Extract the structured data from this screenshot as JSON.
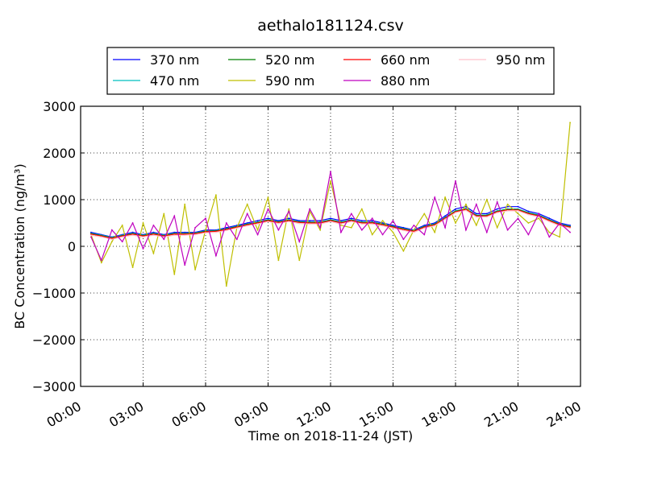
{
  "chart_data": {
    "type": "line",
    "title": "aethalo181124.csv",
    "xlabel": "Time on 2018-11-24 (JST)",
    "ylabel": "BC Concentration (ng/m³)",
    "x_ticks": [
      "00:00",
      "03:00",
      "06:00",
      "09:00",
      "12:00",
      "15:00",
      "18:00",
      "21:00",
      "24:00"
    ],
    "xlim_hours": [
      0,
      24
    ],
    "ylim": [
      -3000,
      3000
    ],
    "y_ticks": [
      3000,
      2000,
      1000,
      0,
      -1000,
      -2000,
      -3000
    ],
    "y_tick_labels": [
      "3000",
      "2000",
      "1000",
      "0",
      "−1000",
      "−2000",
      "−3000"
    ],
    "grid": true,
    "legend_position": "top, above plot",
    "x_hours": [
      0.5,
      1.0,
      1.5,
      2.0,
      2.5,
      3.0,
      3.5,
      4.0,
      4.5,
      5.0,
      5.5,
      6.0,
      6.5,
      7.0,
      7.5,
      8.0,
      8.5,
      9.0,
      9.5,
      10.0,
      10.5,
      11.0,
      11.5,
      12.0,
      12.5,
      13.0,
      13.5,
      14.0,
      14.5,
      15.0,
      15.5,
      16.0,
      16.5,
      17.0,
      17.5,
      18.0,
      18.5,
      19.0,
      19.5,
      20.0,
      20.5,
      21.0,
      21.5,
      22.0,
      22.5,
      23.0,
      23.5
    ],
    "series": [
      {
        "name": "370 nm",
        "color": "#0000ff",
        "values": [
          300,
          250,
          200,
          250,
          300,
          250,
          300,
          250,
          300,
          300,
          300,
          350,
          350,
          400,
          450,
          500,
          550,
          600,
          550,
          600,
          550,
          550,
          550,
          600,
          550,
          600,
          550,
          550,
          500,
          450,
          400,
          350,
          450,
          500,
          650,
          800,
          850,
          700,
          700,
          800,
          850,
          850,
          750,
          700,
          600,
          500,
          450
        ]
      },
      {
        "name": "470 nm",
        "color": "#00bfbf",
        "values": [
          280,
          240,
          190,
          240,
          280,
          240,
          280,
          240,
          280,
          280,
          290,
          330,
          340,
          380,
          430,
          480,
          520,
          570,
          530,
          570,
          530,
          520,
          520,
          570,
          520,
          570,
          520,
          520,
          480,
          430,
          380,
          340,
          430,
          480,
          620,
          760,
          810,
          670,
          670,
          760,
          800,
          800,
          720,
          670,
          570,
          480,
          430
        ]
      },
      {
        "name": "520 nm",
        "color": "#008000",
        "values": [
          270,
          230,
          180,
          230,
          270,
          230,
          270,
          230,
          270,
          270,
          280,
          320,
          330,
          370,
          420,
          470,
          510,
          560,
          520,
          560,
          520,
          510,
          510,
          560,
          510,
          560,
          510,
          510,
          470,
          420,
          370,
          330,
          420,
          470,
          610,
          750,
          800,
          660,
          660,
          750,
          790,
          790,
          710,
          660,
          560,
          470,
          420
        ]
      },
      {
        "name": "590 nm",
        "color": "#bfbf00",
        "values": [
          250,
          -350,
          100,
          450,
          -450,
          500,
          -150,
          700,
          -600,
          900,
          -500,
          350,
          1100,
          -850,
          400,
          900,
          350,
          1050,
          -300,
          800,
          -300,
          750,
          350,
          1400,
          450,
          400,
          800,
          250,
          550,
          300,
          -100,
          350,
          700,
          300,
          1050,
          500,
          900,
          450,
          1000,
          400,
          900,
          700,
          500,
          600,
          300,
          200,
          2650
        ]
      },
      {
        "name": "660 nm",
        "color": "#ff0000",
        "values": [
          260,
          220,
          170,
          220,
          260,
          220,
          260,
          220,
          260,
          260,
          270,
          310,
          320,
          360,
          410,
          460,
          500,
          550,
          510,
          550,
          510,
          500,
          500,
          550,
          500,
          550,
          500,
          500,
          460,
          410,
          360,
          320,
          410,
          460,
          600,
          740,
          790,
          650,
          650,
          740,
          780,
          780,
          700,
          650,
          550,
          460,
          410
        ]
      },
      {
        "name": "880 nm",
        "color": "#bf00bf",
        "values": [
          200,
          -300,
          350,
          100,
          500,
          -50,
          450,
          150,
          650,
          -400,
          400,
          600,
          -200,
          500,
          150,
          700,
          250,
          800,
          350,
          750,
          100,
          800,
          400,
          1600,
          300,
          700,
          350,
          600,
          250,
          550,
          150,
          450,
          250,
          1050,
          400,
          1400,
          350,
          900,
          300,
          950,
          350,
          600,
          250,
          700,
          200,
          500,
          300
        ]
      },
      {
        "name": "950 nm",
        "color": "#ffc0cb",
        "values": [
          240,
          200,
          150,
          200,
          240,
          200,
          240,
          200,
          240,
          240,
          250,
          290,
          300,
          340,
          390,
          440,
          480,
          530,
          490,
          530,
          490,
          480,
          480,
          530,
          480,
          530,
          480,
          480,
          440,
          390,
          340,
          300,
          390,
          440,
          580,
          720,
          770,
          630,
          630,
          720,
          760,
          760,
          680,
          630,
          530,
          440,
          390
        ]
      }
    ]
  }
}
